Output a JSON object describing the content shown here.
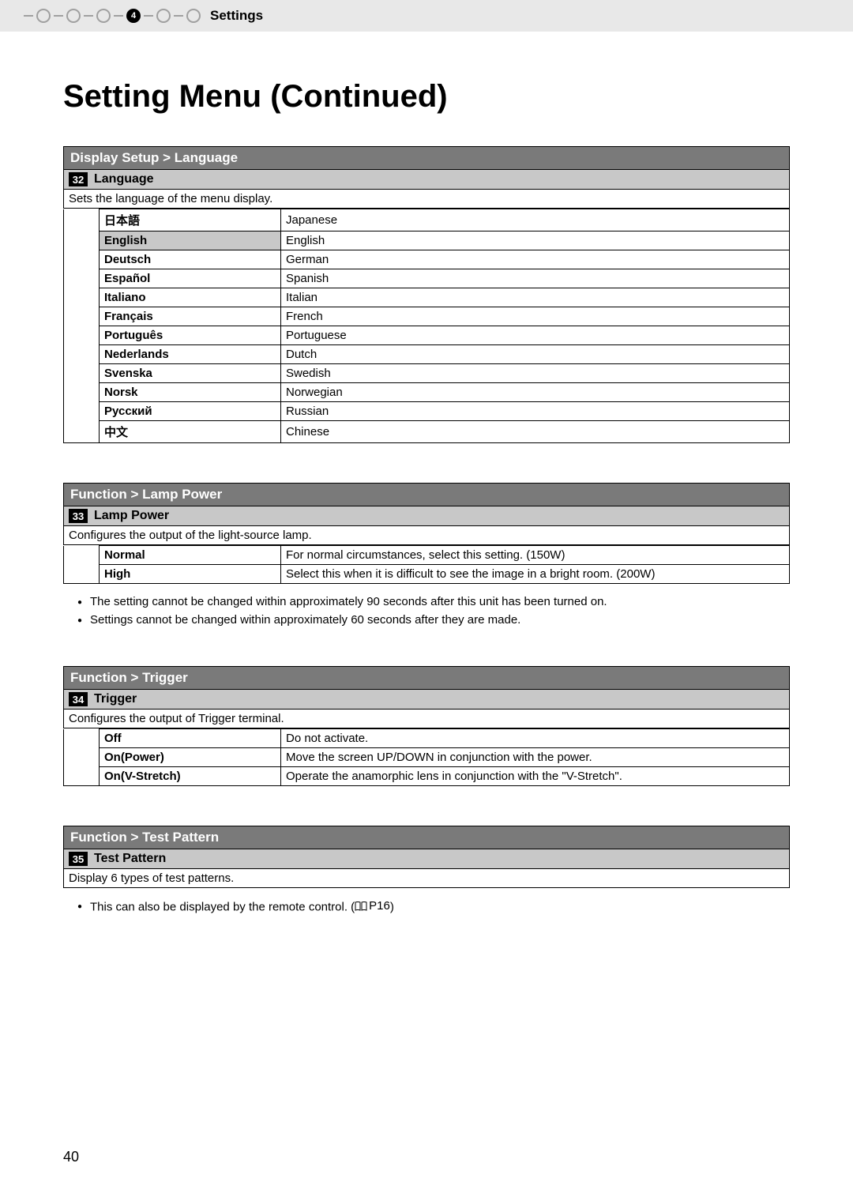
{
  "header": {
    "section_label": "Settings",
    "current_step": "4"
  },
  "title": "Setting Menu (Continued)",
  "page_number": "40",
  "sections": [
    {
      "path": "Display Setup > Language",
      "item_num": "32",
      "item_name": "Language",
      "description": "Sets the language of the menu display.",
      "selected_index": 1,
      "rows": [
        {
          "name": "日本語",
          "desc": "Japanese"
        },
        {
          "name": "English",
          "desc": "English"
        },
        {
          "name": "Deutsch",
          "desc": "German"
        },
        {
          "name": "Español",
          "desc": "Spanish"
        },
        {
          "name": "Italiano",
          "desc": "Italian"
        },
        {
          "name": "Français",
          "desc": "French"
        },
        {
          "name": "Português",
          "desc": "Portuguese"
        },
        {
          "name": "Nederlands",
          "desc": "Dutch"
        },
        {
          "name": "Svenska",
          "desc": "Swedish"
        },
        {
          "name": "Norsk",
          "desc": "Norwegian"
        },
        {
          "name": "Русский",
          "desc": "Russian"
        },
        {
          "name": "中文",
          "desc": "Chinese"
        }
      ]
    },
    {
      "path": "Function > Lamp Power",
      "item_num": "33",
      "item_name": "Lamp Power",
      "description": "Configures the output of the light-source lamp.",
      "selected_index": -1,
      "rows": [
        {
          "name": "Normal",
          "desc": "For normal circumstances, select this setting. (150W)"
        },
        {
          "name": "High",
          "desc": "Select this when it is difficult to see the image in a bright room. (200W)"
        }
      ],
      "bullets": [
        "The setting cannot be changed within approximately 90 seconds after this unit has been turned on.",
        "Settings cannot be changed within approximately 60 seconds after they are made."
      ]
    },
    {
      "path": "Function > Trigger",
      "item_num": "34",
      "item_name": "Trigger",
      "description": "Configures the output of Trigger terminal.",
      "selected_index": -1,
      "rows": [
        {
          "name": "Off",
          "desc": "Do not activate."
        },
        {
          "name": "On(Power)",
          "desc": "Move the screen UP/DOWN in conjunction with the power."
        },
        {
          "name": "On(V-Stretch)",
          "desc": "Operate the anamorphic lens in conjunction with the \"V-Stretch\"."
        }
      ]
    },
    {
      "path": "Function > Test Pattern",
      "item_num": "35",
      "item_name": "Test Pattern",
      "description": "Display 6 types of test patterns.",
      "selected_index": -1,
      "rows": [],
      "bullets_with_ref": {
        "text": "This can also be displayed by the remote control. (",
        "ref": "P16",
        "suffix": ")"
      }
    }
  ]
}
